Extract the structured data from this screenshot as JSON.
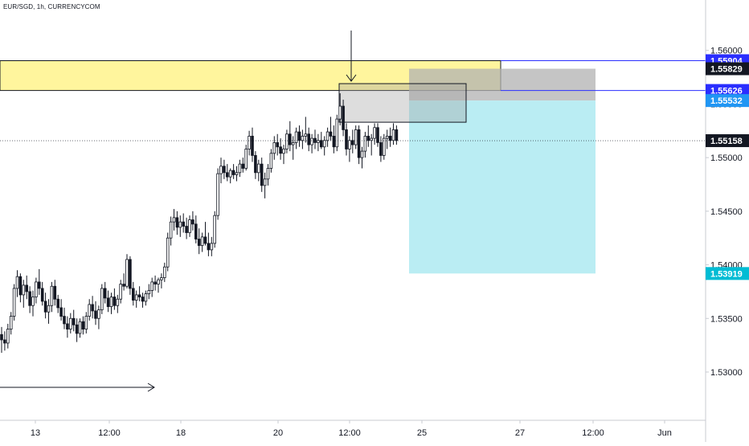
{
  "symbol_title": "EUR/SGD, 1h, CURRENCYCOM",
  "colors": {
    "candle": "#131722",
    "supply_zone": "#fff59d",
    "stop_zone": "#b2b2b2",
    "target_zone": "#b2ebf2",
    "level_line": "#2a2eff",
    "last_price_label": "#131722",
    "entry_label": "#2196f3",
    "target_label": "#00bcd4",
    "axis_text": "#131722"
  },
  "chart_data": {
    "type": "candlestick",
    "title": "",
    "xlabel": "",
    "ylabel": "",
    "ylim": [
      1.5255,
      1.5647
    ],
    "x_axis_ticks": [
      "13",
      "12:00",
      "18",
      "20",
      "12:00",
      "25",
      "27",
      "12:00",
      "Jun"
    ],
    "y_axis_ticks": [
      "1.56000",
      "1.55500",
      "1.55000",
      "1.54500",
      "1.54000",
      "1.53500",
      "1.53000"
    ],
    "y_tick_values": [
      1.56,
      1.555,
      1.55,
      1.545,
      1.54,
      1.535,
      1.53
    ],
    "price_labels": [
      {
        "text": "1.55904",
        "value": 1.55904,
        "style": "level"
      },
      {
        "text": "1.55829",
        "value": 1.55829,
        "style": "last"
      },
      {
        "text": "1.55626",
        "value": 1.55626,
        "style": "level"
      },
      {
        "text": "1.55532",
        "value": 1.55532,
        "style": "entry"
      },
      {
        "text": "1.55158",
        "value": 1.55158,
        "style": "last"
      },
      {
        "text": "1.53919",
        "value": 1.53919,
        "style": "target"
      }
    ],
    "horizontal_levels": [
      1.55904,
      1.55626
    ],
    "current_price": 1.55158,
    "supply_zone": {
      "top": 1.55904,
      "bottom": 1.55626
    },
    "position_tool": {
      "side": "short",
      "stop": 1.55829,
      "entry": 1.55532,
      "target": 1.53919
    },
    "series": [
      {
        "values": [
          [
            1.5335,
            1.5342,
            1.5318,
            1.533
          ],
          [
            1.533,
            1.5338,
            1.532,
            1.5327
          ],
          [
            1.5327,
            1.5345,
            1.5322,
            1.534
          ],
          [
            1.534,
            1.5356,
            1.5335,
            1.5352
          ],
          [
            1.5352,
            1.5382,
            1.5348,
            1.5378
          ],
          [
            1.5378,
            1.5395,
            1.537,
            1.5389
          ],
          [
            1.5389,
            1.5392,
            1.5365,
            1.5372
          ],
          [
            1.5372,
            1.5386,
            1.536,
            1.5381
          ],
          [
            1.5381,
            1.539,
            1.5368,
            1.5375
          ],
          [
            1.5375,
            1.538,
            1.5355,
            1.5362
          ],
          [
            1.5362,
            1.5376,
            1.5352,
            1.537
          ],
          [
            1.537,
            1.5388,
            1.5364,
            1.5384
          ],
          [
            1.5384,
            1.5396,
            1.5372,
            1.5378
          ],
          [
            1.5378,
            1.5384,
            1.5362,
            1.5366
          ],
          [
            1.5366,
            1.5374,
            1.535,
            1.5356
          ],
          [
            1.5356,
            1.5368,
            1.5345,
            1.5362
          ],
          [
            1.5362,
            1.5384,
            1.5356,
            1.538
          ],
          [
            1.538,
            1.5386,
            1.5362,
            1.5368
          ],
          [
            1.5368,
            1.5372,
            1.5355,
            1.536
          ],
          [
            1.536,
            1.5368,
            1.5348,
            1.5352
          ],
          [
            1.5352,
            1.536,
            1.534,
            1.5345
          ],
          [
            1.5345,
            1.5352,
            1.5332,
            1.534
          ],
          [
            1.534,
            1.5355,
            1.5336,
            1.535
          ],
          [
            1.535,
            1.5358,
            1.5338,
            1.5344
          ],
          [
            1.5344,
            1.535,
            1.5328,
            1.5336
          ],
          [
            1.5336,
            1.535,
            1.5332,
            1.5347
          ],
          [
            1.5347,
            1.5352,
            1.5335,
            1.534
          ],
          [
            1.534,
            1.5356,
            1.5336,
            1.5352
          ],
          [
            1.5352,
            1.5368,
            1.5348,
            1.5363
          ],
          [
            1.5363,
            1.5371,
            1.535,
            1.5357
          ],
          [
            1.5357,
            1.5366,
            1.5344,
            1.535
          ],
          [
            1.535,
            1.5362,
            1.534,
            1.5358
          ],
          [
            1.5358,
            1.5382,
            1.5354,
            1.5378
          ],
          [
            1.5378,
            1.5384,
            1.5364,
            1.5369
          ],
          [
            1.5369,
            1.5376,
            1.5356,
            1.5361
          ],
          [
            1.5361,
            1.5374,
            1.5354,
            1.537
          ],
          [
            1.537,
            1.5378,
            1.5358,
            1.5362
          ],
          [
            1.5362,
            1.5372,
            1.5355,
            1.5368
          ],
          [
            1.5368,
            1.5386,
            1.5364,
            1.5382
          ],
          [
            1.5382,
            1.5392,
            1.5376,
            1.538
          ],
          [
            1.538,
            1.541,
            1.5378,
            1.5405
          ],
          [
            1.5405,
            1.5408,
            1.5372,
            1.5378
          ],
          [
            1.5378,
            1.5384,
            1.5362,
            1.5367
          ],
          [
            1.5367,
            1.5376,
            1.536,
            1.5372
          ],
          [
            1.5372,
            1.538,
            1.5366,
            1.537
          ],
          [
            1.537,
            1.5374,
            1.536,
            1.5366
          ],
          [
            1.5366,
            1.5376,
            1.5362,
            1.5373
          ],
          [
            1.5373,
            1.5382,
            1.5368,
            1.5376
          ],
          [
            1.5376,
            1.5388,
            1.537,
            1.5384
          ],
          [
            1.5384,
            1.539,
            1.5376,
            1.5382
          ],
          [
            1.5382,
            1.5388,
            1.5374,
            1.5386
          ],
          [
            1.5386,
            1.5392,
            1.5378,
            1.5388
          ],
          [
            1.5388,
            1.5402,
            1.5384,
            1.5398
          ],
          [
            1.5398,
            1.543,
            1.5394,
            1.5425
          ],
          [
            1.5425,
            1.5445,
            1.5418,
            1.544
          ],
          [
            1.544,
            1.5452,
            1.5432,
            1.5444
          ],
          [
            1.5444,
            1.545,
            1.5428,
            1.5435
          ],
          [
            1.5435,
            1.5446,
            1.5426,
            1.544
          ],
          [
            1.544,
            1.5448,
            1.543,
            1.5436
          ],
          [
            1.5436,
            1.5444,
            1.5424,
            1.543
          ],
          [
            1.543,
            1.5446,
            1.5426,
            1.5442
          ],
          [
            1.5442,
            1.545,
            1.5432,
            1.5438
          ],
          [
            1.5438,
            1.5446,
            1.542,
            1.5424
          ],
          [
            1.5424,
            1.5434,
            1.541,
            1.5418
          ],
          [
            1.5418,
            1.543,
            1.5412,
            1.5426
          ],
          [
            1.5426,
            1.544,
            1.5418,
            1.542
          ],
          [
            1.542,
            1.543,
            1.5408,
            1.5414
          ],
          [
            1.5414,
            1.5426,
            1.5408,
            1.542
          ],
          [
            1.542,
            1.545,
            1.5416,
            1.5446
          ],
          [
            1.5446,
            1.549,
            1.5442,
            1.5485
          ],
          [
            1.5485,
            1.55,
            1.5476,
            1.5492
          ],
          [
            1.5492,
            1.5498,
            1.548,
            1.5486
          ],
          [
            1.5486,
            1.5494,
            1.5478,
            1.5482
          ],
          [
            1.5482,
            1.549,
            1.5476,
            1.5488
          ],
          [
            1.5488,
            1.5494,
            1.548,
            1.5484
          ],
          [
            1.5484,
            1.5492,
            1.5478,
            1.5486
          ],
          [
            1.5486,
            1.5498,
            1.5482,
            1.5494
          ],
          [
            1.5494,
            1.55,
            1.5486,
            1.549
          ],
          [
            1.549,
            1.5512,
            1.5488,
            1.5508
          ],
          [
            1.5508,
            1.5525,
            1.5502,
            1.552
          ],
          [
            1.552,
            1.5528,
            1.5496,
            1.5502
          ],
          [
            1.5502,
            1.5506,
            1.548,
            1.5486
          ],
          [
            1.5486,
            1.5498,
            1.5478,
            1.5494
          ],
          [
            1.5494,
            1.55,
            1.5468,
            1.5474
          ],
          [
            1.5474,
            1.5486,
            1.5462,
            1.548
          ],
          [
            1.548,
            1.5494,
            1.5474,
            1.549
          ],
          [
            1.549,
            1.5508,
            1.5486,
            1.5504
          ],
          [
            1.5504,
            1.552,
            1.5498,
            1.5514
          ],
          [
            1.5514,
            1.5522,
            1.5502,
            1.551
          ],
          [
            1.551,
            1.5518,
            1.5498,
            1.5504
          ],
          [
            1.5504,
            1.5512,
            1.5494,
            1.5508
          ],
          [
            1.5508,
            1.5526,
            1.5504,
            1.5522
          ],
          [
            1.5522,
            1.5534,
            1.5506,
            1.5512
          ],
          [
            1.5512,
            1.552,
            1.5498,
            1.5514
          ],
          [
            1.5514,
            1.5528,
            1.5508,
            1.5524
          ],
          [
            1.5524,
            1.553,
            1.551,
            1.5516
          ],
          [
            1.5516,
            1.5526,
            1.5508,
            1.552
          ],
          [
            1.552,
            1.5538,
            1.5514,
            1.5522
          ],
          [
            1.5522,
            1.5528,
            1.5506,
            1.5512
          ],
          [
            1.5512,
            1.5522,
            1.5504,
            1.5518
          ],
          [
            1.5518,
            1.5526,
            1.5508,
            1.5514
          ],
          [
            1.5514,
            1.5522,
            1.5506,
            1.5516
          ],
          [
            1.5516,
            1.5524,
            1.5508,
            1.551
          ],
          [
            1.551,
            1.552,
            1.5502,
            1.5516
          ],
          [
            1.5516,
            1.5528,
            1.551,
            1.5524
          ],
          [
            1.5524,
            1.5538,
            1.5516,
            1.552
          ],
          [
            1.552,
            1.553,
            1.5504,
            1.551
          ],
          [
            1.551,
            1.554,
            1.5506,
            1.5536
          ],
          [
            1.5536,
            1.556,
            1.553,
            1.5548
          ],
          [
            1.5548,
            1.5554,
            1.552,
            1.5526
          ],
          [
            1.5526,
            1.5532,
            1.5502,
            1.5508
          ],
          [
            1.5508,
            1.552,
            1.5496,
            1.5516
          ],
          [
            1.5516,
            1.5526,
            1.5504,
            1.5512
          ],
          [
            1.5512,
            1.553,
            1.5508,
            1.5526
          ],
          [
            1.5526,
            1.553,
            1.5494,
            1.55
          ],
          [
            1.55,
            1.551,
            1.549,
            1.5506
          ],
          [
            1.5506,
            1.5524,
            1.55,
            1.552
          ],
          [
            1.552,
            1.553,
            1.551,
            1.5516
          ],
          [
            1.5516,
            1.5522,
            1.5502,
            1.5518
          ],
          [
            1.5518,
            1.5532,
            1.5512,
            1.5528
          ],
          [
            1.5528,
            1.5532,
            1.551,
            1.5514
          ],
          [
            1.5514,
            1.552,
            1.5496,
            1.5502
          ],
          [
            1.5502,
            1.5522,
            1.5498,
            1.5518
          ],
          [
            1.5518,
            1.5526,
            1.5508,
            1.552
          ],
          [
            1.552,
            1.5528,
            1.551,
            1.5516
          ],
          [
            1.5516,
            1.5532,
            1.5512,
            1.5526
          ],
          [
            1.5526,
            1.553,
            1.5512,
            1.5516
          ]
        ]
      }
    ]
  }
}
